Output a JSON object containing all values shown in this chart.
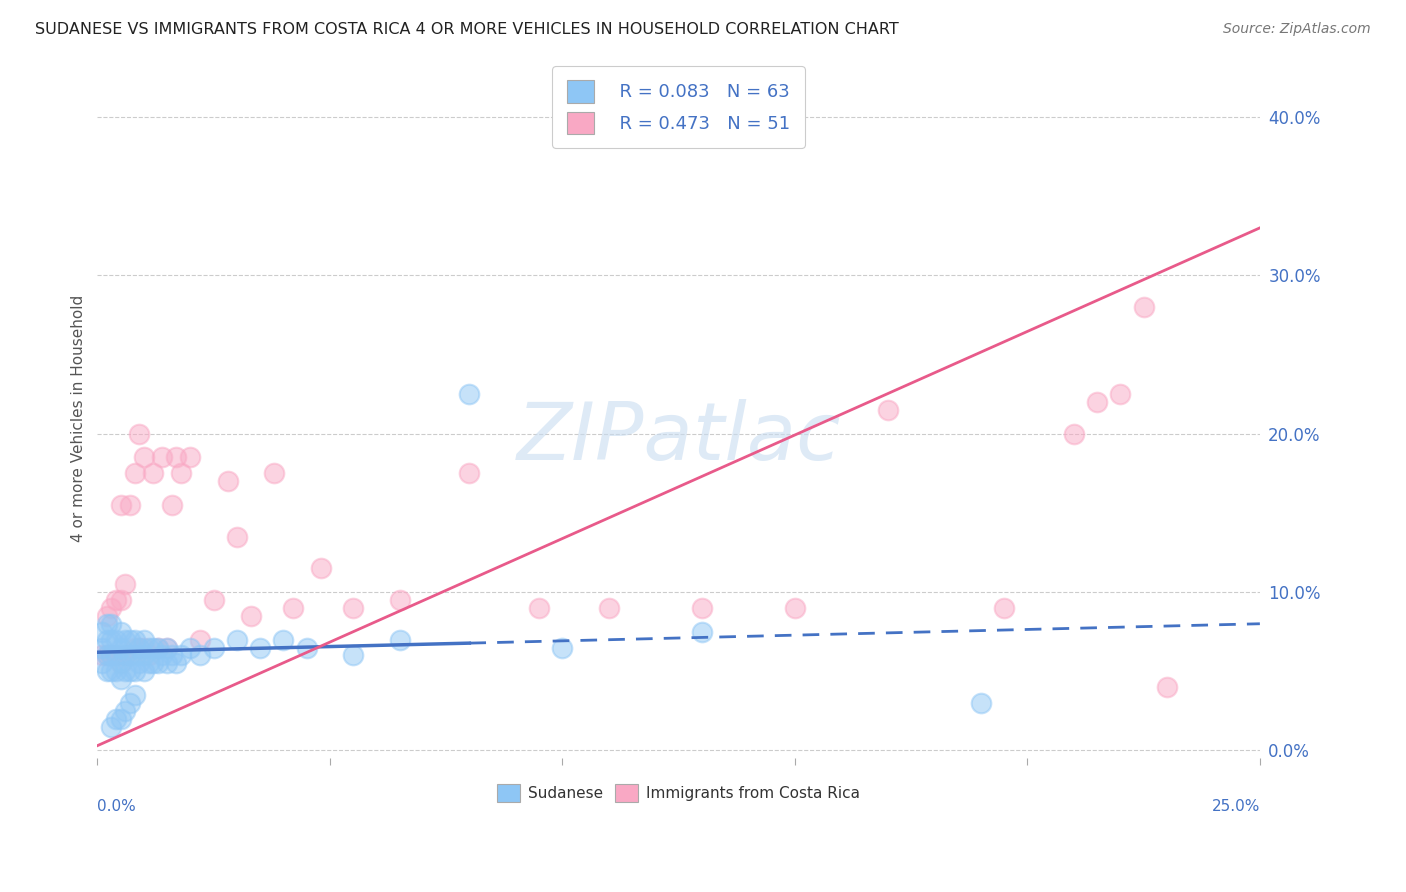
{
  "title": "SUDANESE VS IMMIGRANTS FROM COSTA RICA 4 OR MORE VEHICLES IN HOUSEHOLD CORRELATION CHART",
  "source": "Source: ZipAtlas.com",
  "ylabel": "4 or more Vehicles in Household",
  "ytick_values": [
    0.0,
    0.1,
    0.2,
    0.3,
    0.4
  ],
  "xlim": [
    0,
    0.25
  ],
  "ylim": [
    -0.005,
    0.425
  ],
  "watermark": "ZIPatlас",
  "legend1_r": "R = 0.083",
  "legend1_n": "N = 63",
  "legend2_r": "R = 0.473",
  "legend2_n": "N = 51",
  "color_blue": "#8EC6F5",
  "color_pink": "#F9A8C4",
  "color_blue_line": "#4472C4",
  "color_pink_line": "#E85A8A",
  "color_text_blue": "#4472C4",
  "sudanese_x": [
    0.001,
    0.001,
    0.001,
    0.002,
    0.002,
    0.002,
    0.002,
    0.003,
    0.003,
    0.003,
    0.003,
    0.003,
    0.004,
    0.004,
    0.004,
    0.004,
    0.005,
    0.005,
    0.005,
    0.005,
    0.005,
    0.006,
    0.006,
    0.006,
    0.006,
    0.007,
    0.007,
    0.007,
    0.007,
    0.008,
    0.008,
    0.008,
    0.008,
    0.009,
    0.009,
    0.01,
    0.01,
    0.01,
    0.011,
    0.011,
    0.012,
    0.012,
    0.013,
    0.013,
    0.014,
    0.015,
    0.015,
    0.016,
    0.017,
    0.018,
    0.02,
    0.022,
    0.025,
    0.03,
    0.035,
    0.04,
    0.045,
    0.055,
    0.065,
    0.08,
    0.1,
    0.13,
    0.19
  ],
  "sudanese_y": [
    0.055,
    0.065,
    0.075,
    0.05,
    0.06,
    0.07,
    0.08,
    0.05,
    0.06,
    0.07,
    0.08,
    0.015,
    0.05,
    0.06,
    0.07,
    0.02,
    0.045,
    0.055,
    0.065,
    0.075,
    0.02,
    0.05,
    0.06,
    0.07,
    0.025,
    0.05,
    0.06,
    0.07,
    0.03,
    0.05,
    0.06,
    0.07,
    0.035,
    0.055,
    0.065,
    0.05,
    0.06,
    0.07,
    0.055,
    0.065,
    0.055,
    0.065,
    0.055,
    0.065,
    0.06,
    0.055,
    0.065,
    0.06,
    0.055,
    0.06,
    0.065,
    0.06,
    0.065,
    0.07,
    0.065,
    0.07,
    0.065,
    0.06,
    0.07,
    0.225,
    0.065,
    0.075,
    0.03
  ],
  "costarica_x": [
    0.001,
    0.002,
    0.002,
    0.003,
    0.003,
    0.004,
    0.004,
    0.005,
    0.005,
    0.005,
    0.006,
    0.006,
    0.007,
    0.007,
    0.008,
    0.008,
    0.009,
    0.009,
    0.01,
    0.01,
    0.011,
    0.012,
    0.013,
    0.014,
    0.015,
    0.016,
    0.017,
    0.018,
    0.02,
    0.022,
    0.025,
    0.028,
    0.03,
    0.033,
    0.038,
    0.042,
    0.048,
    0.055,
    0.065,
    0.08,
    0.095,
    0.11,
    0.13,
    0.15,
    0.17,
    0.195,
    0.21,
    0.215,
    0.22,
    0.225,
    0.23
  ],
  "costarica_y": [
    0.06,
    0.06,
    0.085,
    0.06,
    0.09,
    0.06,
    0.095,
    0.055,
    0.095,
    0.155,
    0.06,
    0.105,
    0.06,
    0.155,
    0.065,
    0.175,
    0.065,
    0.2,
    0.065,
    0.185,
    0.06,
    0.175,
    0.065,
    0.185,
    0.065,
    0.155,
    0.185,
    0.175,
    0.185,
    0.07,
    0.095,
    0.17,
    0.135,
    0.085,
    0.175,
    0.09,
    0.115,
    0.09,
    0.095,
    0.175,
    0.09,
    0.09,
    0.09,
    0.09,
    0.215,
    0.09,
    0.2,
    0.22,
    0.225,
    0.28,
    0.04
  ],
  "blue_line_x0": 0.0,
  "blue_line_x_solid_end": 0.08,
  "blue_line_x1": 0.25,
  "blue_line_y0": 0.062,
  "blue_line_y1": 0.08,
  "pink_line_x0": 0.0,
  "pink_line_x1": 0.25,
  "pink_line_y0": 0.003,
  "pink_line_y1": 0.33,
  "grid_color": "#CCCCCC",
  "background_color": "#FFFFFF"
}
